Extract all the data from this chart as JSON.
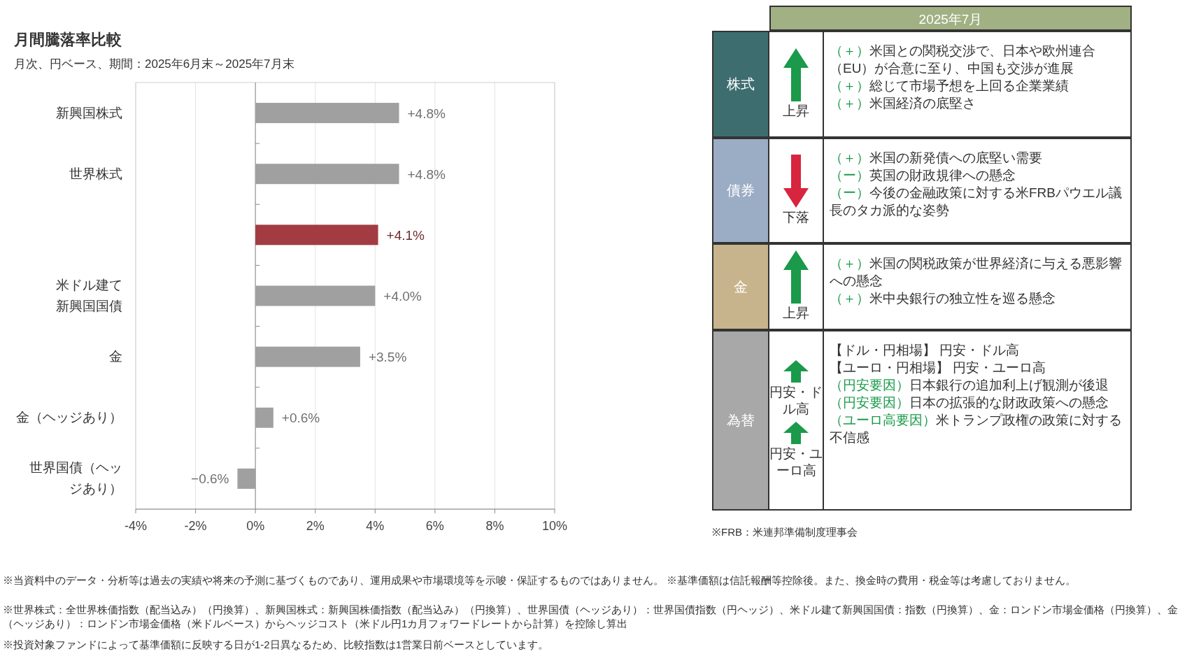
{
  "chart_data": [
    {
      "type": "bar",
      "orientation": "horizontal",
      "title": "月間騰落率比較",
      "subtitle": "月次、円ベース、期間：2025年6月末～2025年7月末",
      "categories": [
        "新興国株式",
        "世界株式",
        null,
        "米ドル建て新興国国債",
        "金",
        "金（ヘッジあり）",
        "世界国債（ヘッジあり）"
      ],
      "values": [
        4.8,
        4.8,
        4.1,
        4.0,
        3.5,
        0.6,
        -0.6
      ],
      "colors": [
        "#a0a0a0",
        "#a0a0a0",
        "#a23c42",
        "#a0a0a0",
        "#a0a0a0",
        "#a0a0a0",
        "#a0a0a0"
      ],
      "value_labels": [
        "+4.8%",
        "+4.8%",
        "+4.1%",
        "+4.0%",
        "+3.5%",
        "+0.6%",
        "−0.6%"
      ],
      "xlim": [
        -4,
        10
      ],
      "xticks": [
        {
          "value": -4,
          "label": "-4%"
        },
        {
          "value": -2,
          "label": "-2%"
        },
        {
          "value": 0,
          "label": "0%"
        },
        {
          "value": 2,
          "label": "2%"
        },
        {
          "value": 4,
          "label": "4%"
        },
        {
          "value": 6,
          "label": "6%"
        },
        {
          "value": 8,
          "label": "8%"
        },
        {
          "value": 10,
          "label": "10%"
        }
      ],
      "grid": "x",
      "annotations": [
        "※当資料中のデータ・分析等は過去の実績や将来の予測に基づくものであり、運用成果や市場環境等を示唆・保証するものではありません。 ※基準価額は信託報酬等控除後。また、換金時の費用・税金等は考慮しておりません。",
        "※世界株式：全世界株価指数（配当込み）（円換算）、新興国株式：新興国株価指数（配当込み）（円換算）、世界国債（ヘッジあり）：世界国債指数（円ヘッジ）、米ドル建て新興国国債：指数（円換算）、金：ロンドン市場金価格（円換算）、金（ヘッジあり）：ロンドン市場金価格（米ドルベース）からヘッジコスト（米ドル円1カ月フォワードレートから計算）を控除し算出",
        "※投資対象ファンドによって基準価額に反映する日が1-2日異なるため、比較指数は1営業日前ベースとしています。"
      ]
    },
    {
      "type": "other",
      "title": "2025年7月",
      "categories": [
        "株式",
        "債券",
        "金",
        "為替"
      ],
      "colors": [
        "#3e6d70",
        "#9badc4",
        "#c8b48c",
        "#a8a8a8"
      ],
      "cell_labels": [
        [
          "上昇",
          "（＋）米国との関税交渉で、日本や欧州連合（EU）が合意に至り、中国も交渉が進展",
          "（＋）総じて市場予想を上回る企業業績",
          "（＋）米国経済の底堅さ"
        ],
        [
          "下落",
          "（＋）米国の新発債への底堅い需要",
          "（ー）英国の財政規律への懸念",
          "（ー）今後の金融政策に対する米FRBパウエル議長のタカ派的な姿勢"
        ],
        [
          "上昇",
          "（＋）米国の関税政策が世界経済に与える悪影響への懸念",
          "（＋）米中央銀行の独立性を巡る懸念"
        ],
        [
          "円安・ドル高",
          "円安・ユーロ高",
          "【ドル・円相場】 円安・ドル高",
          "【ユーロ・円相場】 円安・ユーロ高",
          "（円安要因）日本銀行の追加利上げ観測が後退",
          "（円安要因）日本の拡張的な財政政策への懸念",
          "（ユーロ高要因）米トランプ政権の政策に対する不信感"
        ]
      ],
      "annotations": [
        "※FRB：米連邦準備制度理事会"
      ]
    }
  ]
}
